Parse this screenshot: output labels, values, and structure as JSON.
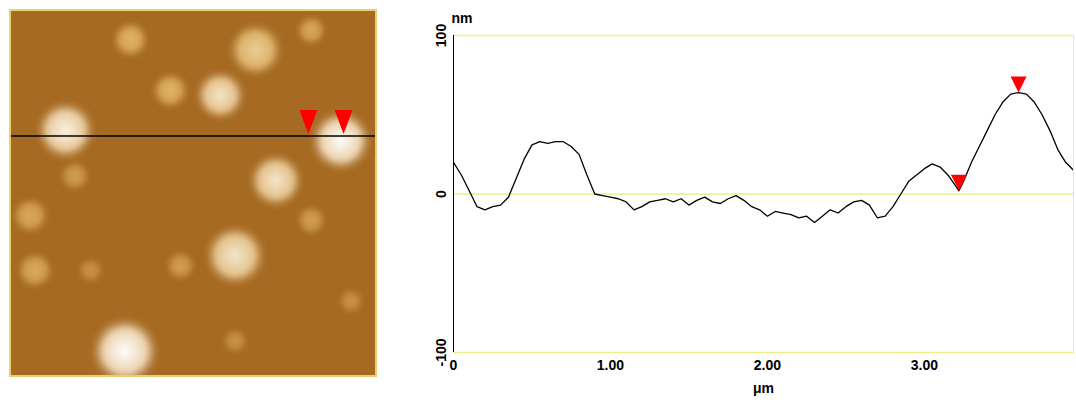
{
  "chart_data": {
    "type": "line",
    "xlabel": "μm",
    "ylabel": "nm",
    "color": "#000000",
    "line_style": "solid",
    "x": [
      0,
      0.05,
      0.1,
      0.15,
      0.2,
      0.25,
      0.3,
      0.35,
      0.4,
      0.45,
      0.5,
      0.55,
      0.6,
      0.65,
      0.7,
      0.75,
      0.8,
      0.85,
      0.9,
      0.95,
      1.0,
      1.05,
      1.1,
      1.15,
      1.2,
      1.25,
      1.3,
      1.35,
      1.4,
      1.45,
      1.5,
      1.55,
      1.6,
      1.65,
      1.7,
      1.75,
      1.8,
      1.85,
      1.9,
      1.95,
      2.0,
      2.05,
      2.1,
      2.15,
      2.2,
      2.25,
      2.3,
      2.35,
      2.4,
      2.45,
      2.5,
      2.55,
      2.6,
      2.65,
      2.7,
      2.75,
      2.8,
      2.85,
      2.9,
      2.95,
      3.0,
      3.05,
      3.1,
      3.15,
      3.2,
      3.22,
      3.25,
      3.3,
      3.35,
      3.4,
      3.45,
      3.5,
      3.55,
      3.6,
      3.65,
      3.7,
      3.75,
      3.8,
      3.85,
      3.9,
      3.95
    ],
    "values": [
      20,
      12,
      2,
      -8,
      -10,
      -8,
      -7,
      -2,
      10,
      22,
      31,
      33,
      32,
      33,
      33,
      30,
      25,
      12,
      0,
      -1,
      -2,
      -3,
      -5,
      -10,
      -8,
      -5,
      -4,
      -3,
      -5,
      -3,
      -7,
      -4,
      -2,
      -5,
      -6,
      -3,
      -1,
      -4,
      -8,
      -10,
      -14,
      -11,
      -12,
      -13,
      -15,
      -14,
      -18,
      -14,
      -10,
      -12,
      -8,
      -5,
      -4,
      -7,
      -15,
      -14,
      -8,
      0,
      8,
      12,
      16,
      19,
      17,
      12,
      5,
      2,
      8,
      20,
      30,
      40,
      50,
      58,
      63,
      64,
      63,
      58,
      50,
      40,
      28,
      20,
      15
    ],
    "xlim": [
      0,
      3.95
    ],
    "ylim": [
      -100,
      100
    ],
    "xticks": [
      0,
      {
        "value": 1,
        "label": "1.00"
      },
      {
        "value": 2,
        "label": "2.00"
      },
      {
        "value": 3,
        "label": "3.00"
      }
    ],
    "yticks": [
      -100,
      0,
      100
    ],
    "grid": true,
    "markers": {
      "x": [
        3.22,
        3.6
      ],
      "values": [
        2,
        64
      ],
      "color": "#ff0000",
      "marker": "triangle-down"
    }
  },
  "afm_image": {
    "profile_y": 1.36,
    "grains": [
      {
        "x": 0.6,
        "y": 1.3,
        "r": 0.26,
        "height": 60
      },
      {
        "x": 1.3,
        "y": 0.32,
        "r": 0.16,
        "height": 35
      },
      {
        "x": 1.73,
        "y": 0.87,
        "r": 0.16,
        "height": 35
      },
      {
        "x": 2.27,
        "y": 0.92,
        "r": 0.22,
        "height": 55
      },
      {
        "x": 2.65,
        "y": 0.43,
        "r": 0.24,
        "height": 45
      },
      {
        "x": 3.25,
        "y": 0.22,
        "r": 0.13,
        "height": 30
      },
      {
        "x": 3.57,
        "y": 1.41,
        "r": 0.27,
        "height": 65
      },
      {
        "x": 2.87,
        "y": 1.84,
        "r": 0.24,
        "height": 55
      },
      {
        "x": 2.43,
        "y": 2.65,
        "r": 0.27,
        "height": 55
      },
      {
        "x": 1.24,
        "y": 3.68,
        "r": 0.3,
        "height": 65
      },
      {
        "x": 0.22,
        "y": 2.22,
        "r": 0.16,
        "height": 30
      },
      {
        "x": 0.27,
        "y": 2.81,
        "r": 0.16,
        "height": 30
      },
      {
        "x": 0.7,
        "y": 1.79,
        "r": 0.13,
        "height": 25
      },
      {
        "x": 1.84,
        "y": 2.76,
        "r": 0.13,
        "height": 25
      },
      {
        "x": 3.25,
        "y": 2.27,
        "r": 0.13,
        "height": 25
      },
      {
        "x": 3.68,
        "y": 3.14,
        "r": 0.11,
        "height": 20
      },
      {
        "x": 2.43,
        "y": 3.57,
        "r": 0.11,
        "height": 20
      },
      {
        "x": 0.87,
        "y": 2.81,
        "r": 0.11,
        "height": 20
      }
    ]
  }
}
